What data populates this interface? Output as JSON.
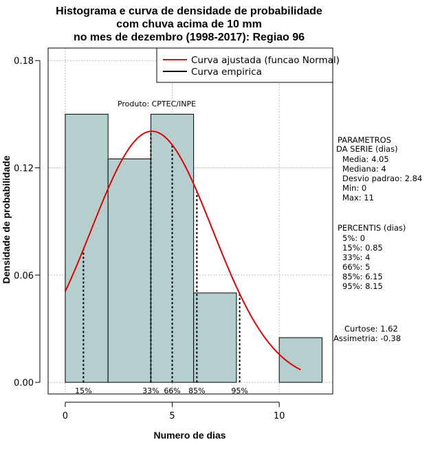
{
  "chart_data": {
    "type": "histogram",
    "title_lines": [
      "Histograma e curva de densidade de probabilidade",
      "com chuva acima de 10 mm",
      "no mes de dezembro (1998-2017): Regiao 96"
    ],
    "xlabel": "Numero de dias",
    "ylabel": "Densidade de probabilidade",
    "xlim": [
      -0.8,
      12.5
    ],
    "ylim": [
      -0.0065,
      0.187
    ],
    "x_ticks": [
      0,
      5,
      10
    ],
    "y_ticks": [
      0.0,
      0.06,
      0.12,
      0.18
    ],
    "y_tick_labels": [
      "0.00",
      "0.06",
      "0.12",
      "0.18"
    ],
    "grid": true,
    "bins": [
      {
        "x0": 0,
        "x1": 2,
        "density": 0.15
      },
      {
        "x0": 2,
        "x1": 4,
        "density": 0.125
      },
      {
        "x0": 4,
        "x1": 6,
        "density": 0.15
      },
      {
        "x0": 6,
        "x1": 8,
        "density": 0.05
      },
      {
        "x0": 8,
        "x1": 10,
        "density": 0.0
      },
      {
        "x0": 10,
        "x1": 12,
        "density": 0.025
      }
    ],
    "fit_curve": {
      "name": "Curva ajustada (funcao Normal)",
      "distribution": "normal",
      "mean": 4.05,
      "sd": 2.84,
      "x_range": [
        0,
        11
      ],
      "color": "#e00000"
    },
    "empirical_curve": {
      "name": "Curva empirica",
      "color": "#000000"
    },
    "percentile_lines": [
      {
        "label": "15%",
        "x": 0.85
      },
      {
        "label": "33%",
        "x": 4
      },
      {
        "label": "66%",
        "x": 5
      },
      {
        "label": "85%",
        "x": 6.15
      },
      {
        "label": "95%",
        "x": 8.15
      }
    ],
    "legend_position": "top-right",
    "product_label": "Produto: CPTEC/INPE",
    "bar_color": "#b5cfcf"
  },
  "side_panel": {
    "params_title_1": "PARAMETROS",
    "params_title_2": "DA SERIE (dias)",
    "params": [
      "Media: 4.05",
      "Mediana: 4",
      "Desvio padrao: 2.84",
      "Min: 0",
      "Max: 11"
    ],
    "perc_title": "PERCENTIS (dias)",
    "percentis": [
      "5%: 0",
      "15%: 0.85",
      "33%: 4",
      "66%: 5",
      "85%: 6.15",
      "95%: 8.15"
    ],
    "curtose": "Curtose: 1.62",
    "assimetria": "Assimetria: -0.38"
  }
}
